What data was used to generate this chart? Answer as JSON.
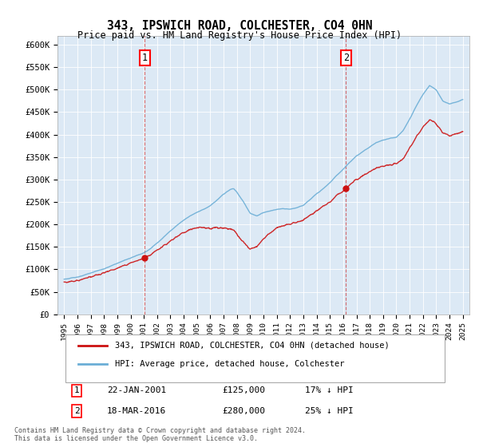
{
  "title": "343, IPSWICH ROAD, COLCHESTER, CO4 0HN",
  "subtitle": "Price paid vs. HM Land Registry's House Price Index (HPI)",
  "background_color": "#dce9f5",
  "plot_bg_color": "#dce9f5",
  "hpi_color": "#6baed6",
  "price_color": "#cc1111",
  "annotation1_year": 2001.06,
  "annotation1_price": 125000,
  "annotation2_year": 2016.21,
  "annotation2_price": 280000,
  "ylabel_ticks": [
    0,
    50000,
    100000,
    150000,
    200000,
    250000,
    300000,
    350000,
    400000,
    450000,
    500000,
    550000,
    600000
  ],
  "ytick_labels": [
    "£0",
    "£50K",
    "£100K",
    "£150K",
    "£200K",
    "£250K",
    "£300K",
    "£350K",
    "£400K",
    "£450K",
    "£500K",
    "£550K",
    "£600K"
  ],
  "xmin": 1994.5,
  "xmax": 2025.5,
  "ymin": 0,
  "ymax": 620000,
  "xticks": [
    1995,
    1996,
    1997,
    1998,
    1999,
    2000,
    2001,
    2002,
    2003,
    2004,
    2005,
    2006,
    2007,
    2008,
    2009,
    2010,
    2011,
    2012,
    2013,
    2014,
    2015,
    2016,
    2017,
    2018,
    2019,
    2020,
    2021,
    2022,
    2023,
    2024,
    2025
  ],
  "legend_entries": [
    "343, IPSWICH ROAD, COLCHESTER, CO4 0HN (detached house)",
    "HPI: Average price, detached house, Colchester"
  ],
  "footer_text": "Contains HM Land Registry data © Crown copyright and database right 2024.\nThis data is licensed under the Open Government Licence v3.0.",
  "annotation_table": [
    [
      "1",
      "22-JAN-2001",
      "£125,000",
      "17% ↓ HPI"
    ],
    [
      "2",
      "18-MAR-2016",
      "£280,000",
      "25% ↓ HPI"
    ]
  ]
}
